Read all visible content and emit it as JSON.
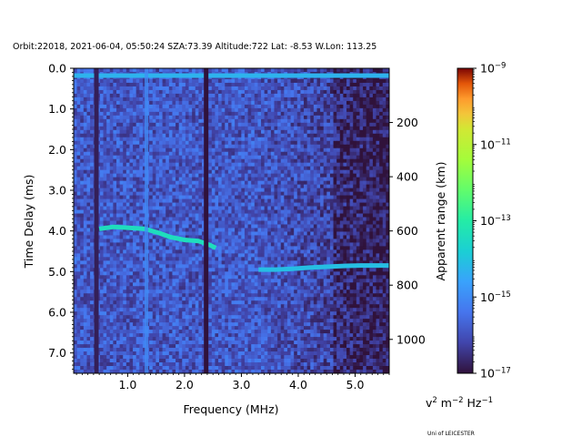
{
  "chart_data": {
    "type": "heatmap",
    "title": "Orbit:22018, 2021-06-04, 05:50:24 SZA:73.39 Altitude:722 Lat: -8.53 W.Lon: 113.25",
    "xlabel": "Frequency (MHz)",
    "ylabel": "Time Delay (ms)",
    "ylabel_right": "Apparent range (km)",
    "xlim": [
      0.05,
      5.6
    ],
    "ylim": [
      7.5,
      0.0
    ],
    "y2lim": [
      1125,
      0
    ],
    "x_ticks": [
      1.0,
      2.0,
      3.0,
      4.0,
      5.0
    ],
    "x_tick_labels": [
      "1.0",
      "2.0",
      "3.0",
      "4.0",
      "5.0"
    ],
    "y_ticks": [
      0.0,
      1.0,
      2.0,
      3.0,
      4.0,
      5.0,
      6.0,
      7.0
    ],
    "y_tick_labels": [
      "0.0",
      "1.0",
      "2.0",
      "3.0",
      "4.0",
      "5.0",
      "6.0",
      "7.0"
    ],
    "y2_ticks": [
      200,
      400,
      600,
      800,
      1000
    ],
    "y2_tick_labels": [
      "200",
      "400",
      "600",
      "800",
      "1000"
    ],
    "colorbar": {
      "scale": "log",
      "range": [
        1e-17,
        1e-09
      ],
      "tick_values": [
        1e-09,
        1e-11,
        1e-13,
        1e-15,
        1e-17
      ],
      "tick_bases": [
        "10",
        "10",
        "10",
        "10",
        "10"
      ],
      "tick_exponents": [
        "−9",
        "−11",
        "−13",
        "−15",
        "−17"
      ],
      "unit_v": "v",
      "unit_sq": "2",
      "unit_m": " m",
      "unit_m_exp": "−2",
      "unit_hz": " Hz",
      "unit_hz_exp": "−1",
      "colormap": "turbo"
    },
    "features": [
      {
        "kind": "horizontal_trace",
        "y": 0.18,
        "x_range": [
          0.05,
          5.6
        ],
        "level": -14.3
      },
      {
        "kind": "echo_trace",
        "points": [
          [
            0.5,
            3.95
          ],
          [
            0.75,
            3.9
          ],
          [
            1.0,
            3.92
          ],
          [
            1.3,
            3.95
          ],
          [
            1.55,
            4.05
          ],
          [
            1.75,
            4.15
          ],
          [
            2.0,
            4.22
          ],
          [
            2.25,
            4.25
          ],
          [
            2.45,
            4.35
          ],
          [
            2.55,
            4.42
          ]
        ],
        "level": -13.4
      },
      {
        "kind": "echo_trace",
        "points": [
          [
            3.3,
            4.95
          ],
          [
            3.6,
            4.95
          ],
          [
            3.9,
            4.93
          ],
          [
            4.2,
            4.9
          ],
          [
            4.5,
            4.88
          ],
          [
            4.8,
            4.86
          ],
          [
            5.1,
            4.85
          ],
          [
            5.4,
            4.85
          ],
          [
            5.6,
            4.85
          ]
        ],
        "level": -14.1
      },
      {
        "kind": "vertical_band",
        "x": 1.33,
        "level": -15.0
      },
      {
        "kind": "dark_column",
        "x": 2.38,
        "level": -17.0
      },
      {
        "kind": "dark_column",
        "x": 0.45,
        "level": -16.8
      }
    ]
  },
  "footer": {
    "credit": "Uni of LEICESTER"
  }
}
